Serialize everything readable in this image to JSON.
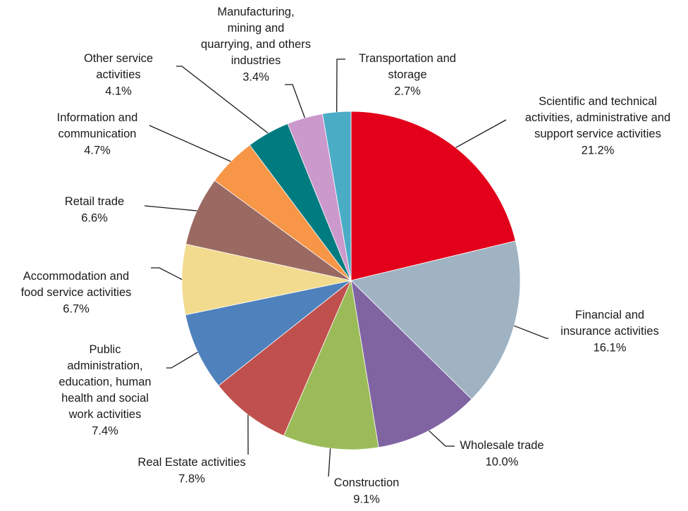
{
  "chart_data": {
    "type": "pie",
    "categories": [
      "Scientific and technical activities, administrative and support service activities",
      "Financial and insurance activities",
      "Wholesale trade",
      "Construction",
      "Real Estate activities",
      "Public administration, education, human health and social work activities",
      "Accommodation and food service activities",
      "Retail trade",
      "Information and communication",
      "Other service activities",
      "Manufacturing, mining and quarrying, and others industries",
      "Transportation and storage"
    ],
    "values": [
      21.2,
      16.1,
      10.0,
      9.1,
      7.8,
      7.4,
      6.7,
      6.6,
      4.7,
      4.1,
      3.4,
      2.7
    ],
    "value_labels": [
      "21.2%",
      "16.1%",
      "10.0%",
      "9.1%",
      "7.8%",
      "7.4%",
      "6.7%",
      "6.6%",
      "4.7%",
      "4.1%",
      "3.4%",
      "2.7%"
    ],
    "colors": [
      "#e2001a",
      "#9fb3c3",
      "#8064a2",
      "#9bbb59",
      "#c0504d",
      "#4f81bd",
      "#f2db8e",
      "#9a6a62",
      "#f79646",
      "#007b7f",
      "#cc99cc",
      "#4bacc6"
    ]
  }
}
